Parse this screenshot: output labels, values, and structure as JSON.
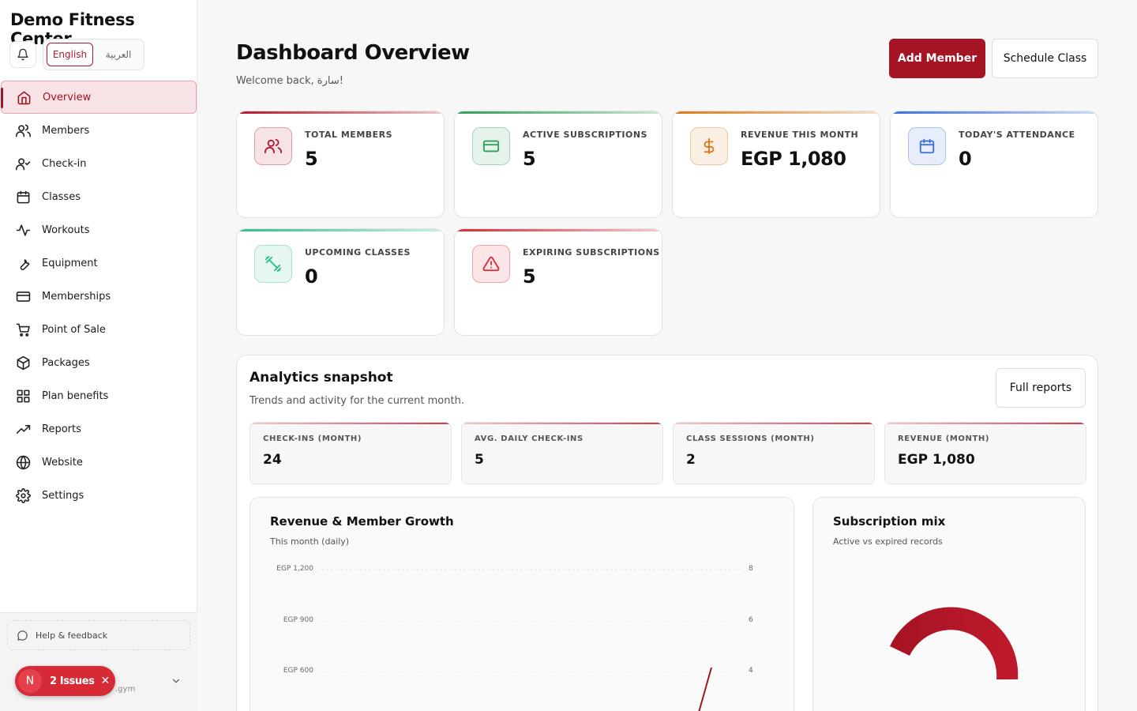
{
  "sidebar": {
    "brand": "Demo Fitness Center",
    "lang": {
      "active": "English",
      "other": "العربية"
    },
    "items": [
      {
        "key": "overview",
        "label": "Overview",
        "icon": "home-icon",
        "active": true
      },
      {
        "key": "members",
        "label": "Members",
        "icon": "users-icon"
      },
      {
        "key": "checkin",
        "label": "Check-in",
        "icon": "user-check-icon"
      },
      {
        "key": "classes",
        "label": "Classes",
        "icon": "calendar-icon"
      },
      {
        "key": "workouts",
        "label": "Workouts",
        "icon": "activity-icon"
      },
      {
        "key": "equipment",
        "label": "Equipment",
        "icon": "wrench-icon"
      },
      {
        "key": "memberships",
        "label": "Memberships",
        "icon": "credit-card-icon"
      },
      {
        "key": "pos",
        "label": "Point of Sale",
        "icon": "cart-icon"
      },
      {
        "key": "packages",
        "label": "Packages",
        "icon": "package-icon"
      },
      {
        "key": "plan-benefits",
        "label": "Plan benefits",
        "icon": "grid-icon"
      },
      {
        "key": "reports",
        "label": "Reports",
        "icon": "trending-icon"
      },
      {
        "key": "website",
        "label": "Website",
        "icon": "globe-icon"
      },
      {
        "key": "settings",
        "label": "Settings",
        "icon": "gear-icon"
      }
    ],
    "help": "Help & feedback",
    "user_sub": ".gym"
  },
  "issues": {
    "avatar": "N",
    "text": "2 Issues"
  },
  "header": {
    "title": "Dashboard Overview",
    "welcome": "Welcome back, سارة!",
    "add_member": "Add Member",
    "schedule_class": "Schedule Class"
  },
  "stats": [
    {
      "label": "TOTAL MEMBERS",
      "value": "5",
      "icon": "users-icon",
      "accent": "#b1182b"
    },
    {
      "label": "ACTIVE SUBSCRIPTIONS",
      "value": "5",
      "icon": "credit-card-icon",
      "accent": "#2e9e5b"
    },
    {
      "label": "REVENUE THIS MONTH",
      "value": "EGP 1,080",
      "icon": "dollar-icon",
      "accent": "#d97a16"
    },
    {
      "label": "TODAY'S ATTENDANCE",
      "value": "0",
      "icon": "calendar-icon",
      "accent": "#3b6fd8"
    },
    {
      "label": "UPCOMING CLASSES",
      "value": "0",
      "icon": "dumbbell-icon",
      "accent": "#2fbf8a"
    },
    {
      "label": "EXPIRING SUBSCRIPTIONS",
      "value": "5",
      "icon": "alert-icon",
      "accent": "#d62a36"
    }
  ],
  "analytics": {
    "title": "Analytics snapshot",
    "subtitle": "Trends and activity for the current month.",
    "full_reports": "Full reports",
    "metrics": [
      {
        "label": "CHECK-INS (MONTH)",
        "value": "24"
      },
      {
        "label": "AVG. DAILY CHECK-INS",
        "value": "5"
      },
      {
        "label": "CLASS SESSIONS (MONTH)",
        "value": "2"
      },
      {
        "label": "REVENUE (MONTH)",
        "value": "EGP 1,080"
      }
    ]
  },
  "chart_data": [
    {
      "type": "line",
      "title": "Revenue & Member Growth",
      "subtitle": "This month (daily)",
      "y_left_ticks": [
        "EGP 1,200",
        "EGP 900",
        "EGP 600"
      ],
      "y_right_ticks": [
        "8",
        "6",
        "4"
      ],
      "ylim_left": [
        0,
        1200
      ],
      "ylim_right": [
        0,
        8
      ],
      "color": "#a51424"
    },
    {
      "type": "pie",
      "title": "Subscription mix",
      "subtitle": "Active vs expired records",
      "color": "#b1182b"
    }
  ]
}
